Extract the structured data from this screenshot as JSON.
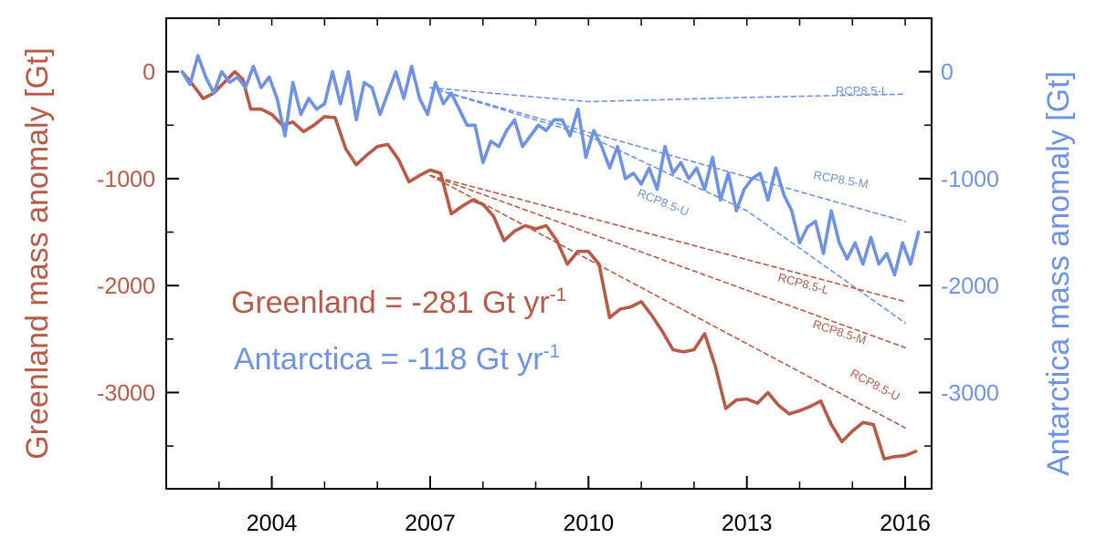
{
  "colors": {
    "greenland": "#b85a47",
    "antarctica": "#6f93e2",
    "axis": "#000000"
  },
  "chart_data": {
    "type": "line",
    "x_axis": {
      "ticks": [
        2004,
        2007,
        2010,
        2013,
        2016
      ],
      "range": [
        2002,
        2016.5
      ]
    },
    "y_left": {
      "label": "Greenland mass anomaly [Gt]",
      "range": [
        -3900,
        500
      ],
      "ticks": [
        0,
        -1000,
        -2000,
        -3000
      ],
      "tick_labels": [
        "0",
        "-1000",
        "-2000",
        "-3000"
      ]
    },
    "y_right": {
      "label": "Antarctica mass anomaly [Gt]",
      "range": [
        -3900,
        500
      ],
      "ticks": [
        0,
        -1000,
        -2000,
        -3000
      ],
      "tick_labels": [
        "0",
        "-1000",
        "-2000",
        "-3000"
      ]
    },
    "series": [
      {
        "name": "Greenland",
        "color": "#b85a47",
        "style": "solid",
        "x": [
          2002.3,
          2002.5,
          2002.7,
          2002.9,
          2003.1,
          2003.3,
          2003.45,
          2003.6,
          2003.8,
          2004.0,
          2004.2,
          2004.4,
          2004.6,
          2004.8,
          2005.0,
          2005.2,
          2005.4,
          2005.6,
          2005.8,
          2006.0,
          2006.2,
          2006.4,
          2006.6,
          2006.8,
          2007.0,
          2007.2,
          2007.4,
          2007.6,
          2007.8,
          2008.0,
          2008.2,
          2008.4,
          2008.6,
          2008.8,
          2009.0,
          2009.2,
          2009.4,
          2009.6,
          2009.8,
          2010.0,
          2010.2,
          2010.4,
          2010.6,
          2010.8,
          2011.0,
          2011.2,
          2011.4,
          2011.6,
          2011.8,
          2012.0,
          2012.2,
          2012.4,
          2012.6,
          2012.8,
          2013.0,
          2013.2,
          2013.4,
          2013.6,
          2013.8,
          2014.0,
          2014.2,
          2014.4,
          2014.6,
          2014.8,
          2015.0,
          2015.2,
          2015.4,
          2015.6,
          2015.8,
          2016.0,
          2016.2
        ],
        "values": [
          0,
          -120,
          -250,
          -200,
          -100,
          0,
          -70,
          -350,
          -350,
          -400,
          -500,
          -470,
          -560,
          -500,
          -420,
          -430,
          -720,
          -870,
          -780,
          -700,
          -680,
          -820,
          -1030,
          -970,
          -920,
          -950,
          -1330,
          -1260,
          -1200,
          -1240,
          -1350,
          -1580,
          -1490,
          -1440,
          -1470,
          -1440,
          -1580,
          -1800,
          -1680,
          -1680,
          -1800,
          -2300,
          -2220,
          -2200,
          -2150,
          -2280,
          -2430,
          -2600,
          -2620,
          -2600,
          -2450,
          -2750,
          -3150,
          -3070,
          -3060,
          -3100,
          -3000,
          -3120,
          -3200,
          -3170,
          -3130,
          -3080,
          -3300,
          -3460,
          -3360,
          -3280,
          -3300,
          -3620,
          -3600,
          -3590,
          -3550
        ]
      },
      {
        "name": "Antarctica",
        "color": "#6f93e2",
        "style": "solid",
        "x": [
          2002.3,
          2002.45,
          2002.6,
          2002.75,
          2002.9,
          2003.05,
          2003.2,
          2003.35,
          2003.5,
          2003.65,
          2003.8,
          2003.95,
          2004.1,
          2004.25,
          2004.4,
          2004.55,
          2004.7,
          2004.85,
          2005.0,
          2005.15,
          2005.3,
          2005.45,
          2005.6,
          2005.75,
          2005.9,
          2006.05,
          2006.2,
          2006.35,
          2006.5,
          2006.65,
          2006.8,
          2006.95,
          2007.1,
          2007.25,
          2007.4,
          2007.55,
          2007.7,
          2007.85,
          2008.0,
          2008.15,
          2008.3,
          2008.45,
          2008.6,
          2008.75,
          2008.9,
          2009.05,
          2009.2,
          2009.35,
          2009.5,
          2009.65,
          2009.8,
          2009.95,
          2010.1,
          2010.25,
          2010.4,
          2010.55,
          2010.7,
          2010.85,
          2011.0,
          2011.15,
          2011.3,
          2011.45,
          2011.6,
          2011.75,
          2011.9,
          2012.05,
          2012.2,
          2012.35,
          2012.5,
          2012.65,
          2012.8,
          2012.95,
          2013.1,
          2013.25,
          2013.4,
          2013.55,
          2013.7,
          2013.85,
          2014.0,
          2014.15,
          2014.3,
          2014.45,
          2014.6,
          2014.75,
          2014.9,
          2015.05,
          2015.2,
          2015.35,
          2015.5,
          2015.65,
          2015.8,
          2015.95,
          2016.1,
          2016.25
        ],
        "values": [
          0,
          -120,
          150,
          -50,
          -200,
          0,
          -100,
          -50,
          -150,
          50,
          -150,
          -50,
          -250,
          -600,
          -100,
          -400,
          -250,
          -350,
          -300,
          0,
          -300,
          0,
          -450,
          -100,
          -150,
          -400,
          -200,
          0,
          -250,
          50,
          -250,
          -400,
          -100,
          -300,
          -200,
          -350,
          -500,
          -500,
          -850,
          -650,
          -700,
          -550,
          -450,
          -700,
          -600,
          -500,
          -550,
          -450,
          -450,
          -600,
          -350,
          -800,
          -550,
          -700,
          -900,
          -700,
          -1000,
          -950,
          -1050,
          -900,
          -1100,
          -700,
          -950,
          -850,
          -1000,
          -900,
          -1100,
          -800,
          -1200,
          -950,
          -1300,
          -1100,
          -1000,
          -950,
          -1200,
          -900,
          -1150,
          -1300,
          -1600,
          -1450,
          -1400,
          -1700,
          -1300,
          -1600,
          -1750,
          -1600,
          -1800,
          -1550,
          -1800,
          -1700,
          -1900,
          -1600,
          -1800,
          -1500
        ]
      },
      {
        "name": "RCP8.5-L",
        "color": "#6f93e2",
        "style": "dashed",
        "x": [
          2007.0,
          2010,
          2013,
          2015,
          2016.0
        ],
        "values": [
          -150,
          -280,
          -240,
          -220,
          -210
        ]
      },
      {
        "name": "RCP8.5-M",
        "color": "#6f93e2",
        "style": "dashed",
        "x": [
          2007.0,
          2016.0
        ],
        "values": [
          -150,
          -1400
        ]
      },
      {
        "name": "RCP8.5-U",
        "color": "#6f93e2",
        "style": "dashed",
        "x": [
          2007.0,
          2010,
          2013,
          2016.0
        ],
        "values": [
          -150,
          -600,
          -1300,
          -2350
        ]
      },
      {
        "name": "RCP8.5-L",
        "color": "#b85a47",
        "style": "dashed",
        "x": [
          2007.0,
          2016.0
        ],
        "values": [
          -970,
          -2150
        ]
      },
      {
        "name": "RCP8.5-M",
        "color": "#b85a47",
        "style": "dashed",
        "x": [
          2007.0,
          2016.0
        ],
        "values": [
          -970,
          -2580
        ]
      },
      {
        "name": "RCP8.5-U",
        "color": "#b85a47",
        "style": "dashed",
        "x": [
          2007.0,
          2016.0
        ],
        "values": [
          -970,
          -3330
        ]
      }
    ],
    "annotations": [
      {
        "label": "Greenland = -281 Gt yr",
        "sup": "-1",
        "color": "#b85a47"
      },
      {
        "label": "Antarctica = -118 Gt yr",
        "sup": "-1",
        "color": "#6f93e2"
      }
    ],
    "grid": false,
    "legend": "none"
  }
}
